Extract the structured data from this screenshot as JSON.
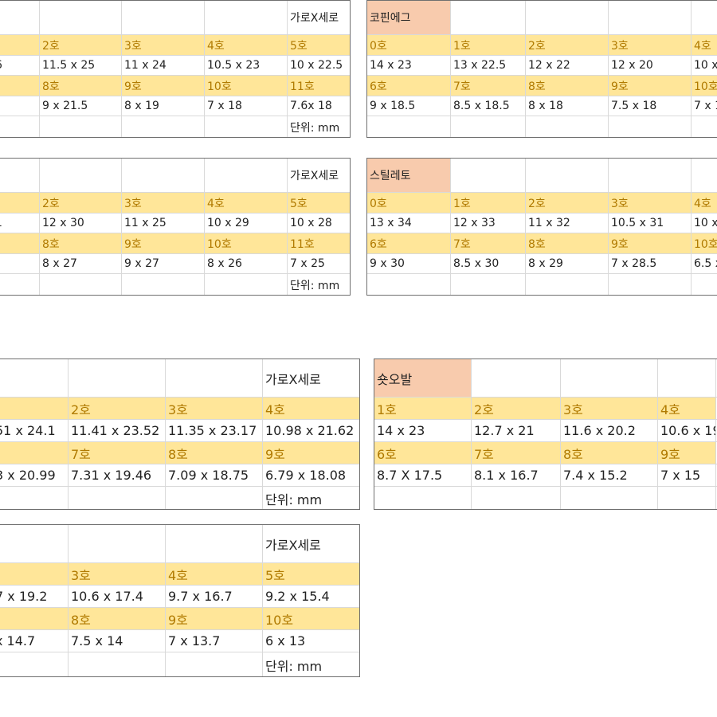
{
  "tables": [
    {
      "id": "t1",
      "rows": [
        [
          "",
          "",
          "",
          "",
          "가로X세로"
        ],
        [
          "",
          "2호",
          "3호",
          "4호",
          "5호"
        ],
        [
          "6",
          "11.5 x 25",
          "11 x 24",
          "10.5 x 23",
          "10 x 22.5"
        ],
        [
          "",
          "8호",
          "9호",
          "10호",
          "11호"
        ],
        [
          "",
          "9 x 21.5",
          "8 x 19",
          "7 x 18",
          "7.6x 18"
        ],
        [
          "",
          "",
          "",
          "",
          "단위: mm"
        ]
      ]
    },
    {
      "id": "t2",
      "rows": [
        [
          "코핀에그",
          "",
          "",
          "",
          ""
        ],
        [
          "0호",
          "1호",
          "2호",
          "3호",
          "4호"
        ],
        [
          "14 x 23",
          "13 x 22.5",
          "12 x 22",
          "12 x 20",
          "10 x"
        ],
        [
          "6호",
          "7호",
          "8호",
          "9호",
          "10호"
        ],
        [
          "9 x 18.5",
          "8.5 x 18.5",
          "8 x 18",
          "7.5 x 18",
          "7 x 1"
        ],
        [
          "",
          "",
          "",
          "",
          ""
        ]
      ]
    },
    {
      "id": "t3",
      "rows": [
        [
          "",
          "",
          "",
          "",
          "가로X세로"
        ],
        [
          "",
          "2호",
          "3호",
          "4호",
          "5호"
        ],
        [
          "1",
          "12 x 30",
          "11 x 25",
          "10 x 29",
          "10 x 28"
        ],
        [
          "",
          "8호",
          "9호",
          "10호",
          "11호"
        ],
        [
          "",
          "8 x 27",
          "9 x 27",
          "8 x 26",
          "7 x 25"
        ],
        [
          "",
          "",
          "",
          "",
          "단위: mm"
        ]
      ]
    },
    {
      "id": "t4",
      "rows": [
        [
          "스틸레토",
          "",
          "",
          "",
          ""
        ],
        [
          "0호",
          "1호",
          "2호",
          "3호",
          "4호"
        ],
        [
          "13 x 34",
          "12 x 33",
          "11 x 32",
          "10.5 x 31",
          "10 x"
        ],
        [
          "6호",
          "7호",
          "8호",
          "9호",
          "10호"
        ],
        [
          "9 x 30",
          "8.5 x 30",
          "8 x 29",
          "7 x 28.5",
          "6.5 x"
        ],
        [
          "",
          "",
          "",
          "",
          ""
        ]
      ]
    },
    {
      "id": "t5",
      "rows": [
        [
          "",
          "",
          "",
          "가로X세로"
        ],
        [
          "",
          "2호",
          "3호",
          "4호"
        ],
        [
          "51 x 24.1",
          "11.41 x 23.52",
          "11.35 x 23.17",
          "10.98 x 21.62"
        ],
        [
          "",
          "7호",
          "8호",
          "9호"
        ],
        [
          "3 x 20.99",
          "7.31 x 19.46",
          "7.09 x 18.75",
          "6.79 x 18.08"
        ],
        [
          "",
          "",
          "",
          "단위: mm"
        ]
      ]
    },
    {
      "id": "t6",
      "rows": [
        [
          "숏오발",
          "",
          "",
          "",
          ""
        ],
        [
          "1호",
          "2호",
          "3호",
          "4호",
          ""
        ],
        [
          "14 x 23",
          "12.7 x 21",
          "11.6 x 20.2",
          "10.6 x 19",
          ""
        ],
        [
          "6호",
          "7호",
          "8호",
          "9호",
          ""
        ],
        [
          "8.7 X 17.5",
          "8.1 x 16.7",
          "7.4 x 15.2",
          "7 x 15",
          ""
        ],
        [
          "",
          "",
          "",
          "",
          ""
        ]
      ]
    },
    {
      "id": "t7",
      "rows": [
        [
          "",
          "",
          "",
          "가로X세로"
        ],
        [
          "",
          "3호",
          "4호",
          "5호"
        ],
        [
          "7 x 19.2",
          "10.6 x 17.4",
          "9.7 x 16.7",
          "9.2 x 15.4"
        ],
        [
          "",
          "8호",
          "9호",
          "10호"
        ],
        [
          "x 14.7",
          "7.5 x 14",
          "7 x 13.7",
          "6 x 13"
        ],
        [
          "",
          "",
          "",
          "단위: mm"
        ]
      ]
    }
  ],
  "colors": {
    "header_fill": "#ffe699",
    "header_text": "#b07a00",
    "shape_fill": "#f8cbad",
    "border": "#6f6f6f",
    "grid": "#d9d9d9"
  }
}
